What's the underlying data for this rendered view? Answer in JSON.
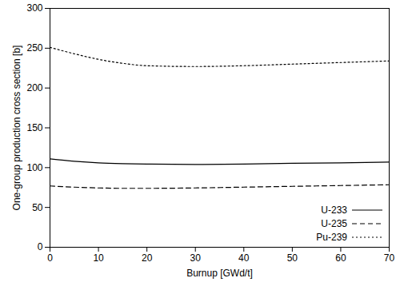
{
  "chart_data": {
    "type": "line",
    "x_label": "Burnup [GWd/t]",
    "y_label": "One-group production cross section [b]",
    "x": [
      0,
      5,
      10,
      15,
      20,
      30,
      40,
      50,
      60,
      70
    ],
    "series": [
      {
        "name": "U-233",
        "color": "#000000",
        "line_style": "solid",
        "values": [
          111,
          108,
          106,
          105,
          104.5,
          104,
          104.5,
          105.5,
          106,
          107
        ]
      },
      {
        "name": "U-235",
        "color": "#000000",
        "line_style": "dashed",
        "values": [
          77,
          75.5,
          74.5,
          74,
          74,
          74.5,
          75.5,
          76.5,
          77.5,
          78.5
        ]
      },
      {
        "name": "Pu-239",
        "color": "#000000",
        "line_style": "dotted",
        "values": [
          251,
          243,
          236,
          231,
          228,
          227,
          228,
          230,
          232,
          234
        ]
      }
    ],
    "xlim": [
      0,
      70
    ],
    "xticks": [
      0,
      10,
      20,
      30,
      40,
      50,
      60,
      70
    ],
    "ylim": [
      0,
      300
    ],
    "yticks": [
      0,
      50,
      100,
      150,
      200,
      250,
      300
    ],
    "grid": false,
    "legend": "bottom-right"
  }
}
